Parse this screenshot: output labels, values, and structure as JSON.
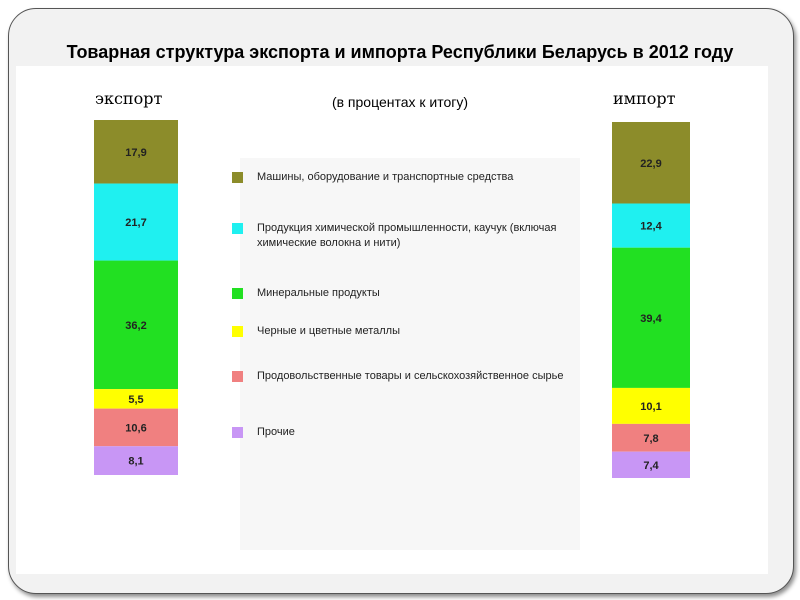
{
  "chart_data": {
    "type": "bar",
    "stacked": true,
    "title": "Товарная структура экспорта и импорта Республики Беларусь в 2012 году",
    "subtitle": "(в процентах к итогу)",
    "categories": [
      "экспорт",
      "импорт"
    ],
    "series": [
      {
        "name": "Машины, оборудование и транспортные средства",
        "color": "#8c8c2a",
        "values": [
          17.9,
          22.9
        ],
        "labels": [
          "17,9",
          "22,9"
        ]
      },
      {
        "name": "Продукция химической промышленности, каучук (включая химические волокна и нити)",
        "color": "#1ff0f0",
        "values": [
          21.7,
          12.4
        ],
        "labels": [
          "21,7",
          "12,4"
        ]
      },
      {
        "name": "Минеральные продукты",
        "color": "#22e022",
        "values": [
          36.2,
          39.4
        ],
        "labels": [
          "36,2",
          "39,4"
        ]
      },
      {
        "name": "Черные и цветные металлы",
        "color": "#ffff00",
        "values": [
          5.5,
          10.1
        ],
        "labels": [
          "5,5",
          "10,1"
        ]
      },
      {
        "name": "Продовольственные товары и сельскохозяйственное сырье",
        "color": "#f08080",
        "values": [
          10.6,
          7.8
        ],
        "labels": [
          "10,6",
          "7,8"
        ]
      },
      {
        "name": "Прочие",
        "color": "#c896f5",
        "values": [
          8.1,
          7.4
        ],
        "labels": [
          "8,1",
          "7,4"
        ]
      }
    ],
    "legend_position": "center"
  }
}
